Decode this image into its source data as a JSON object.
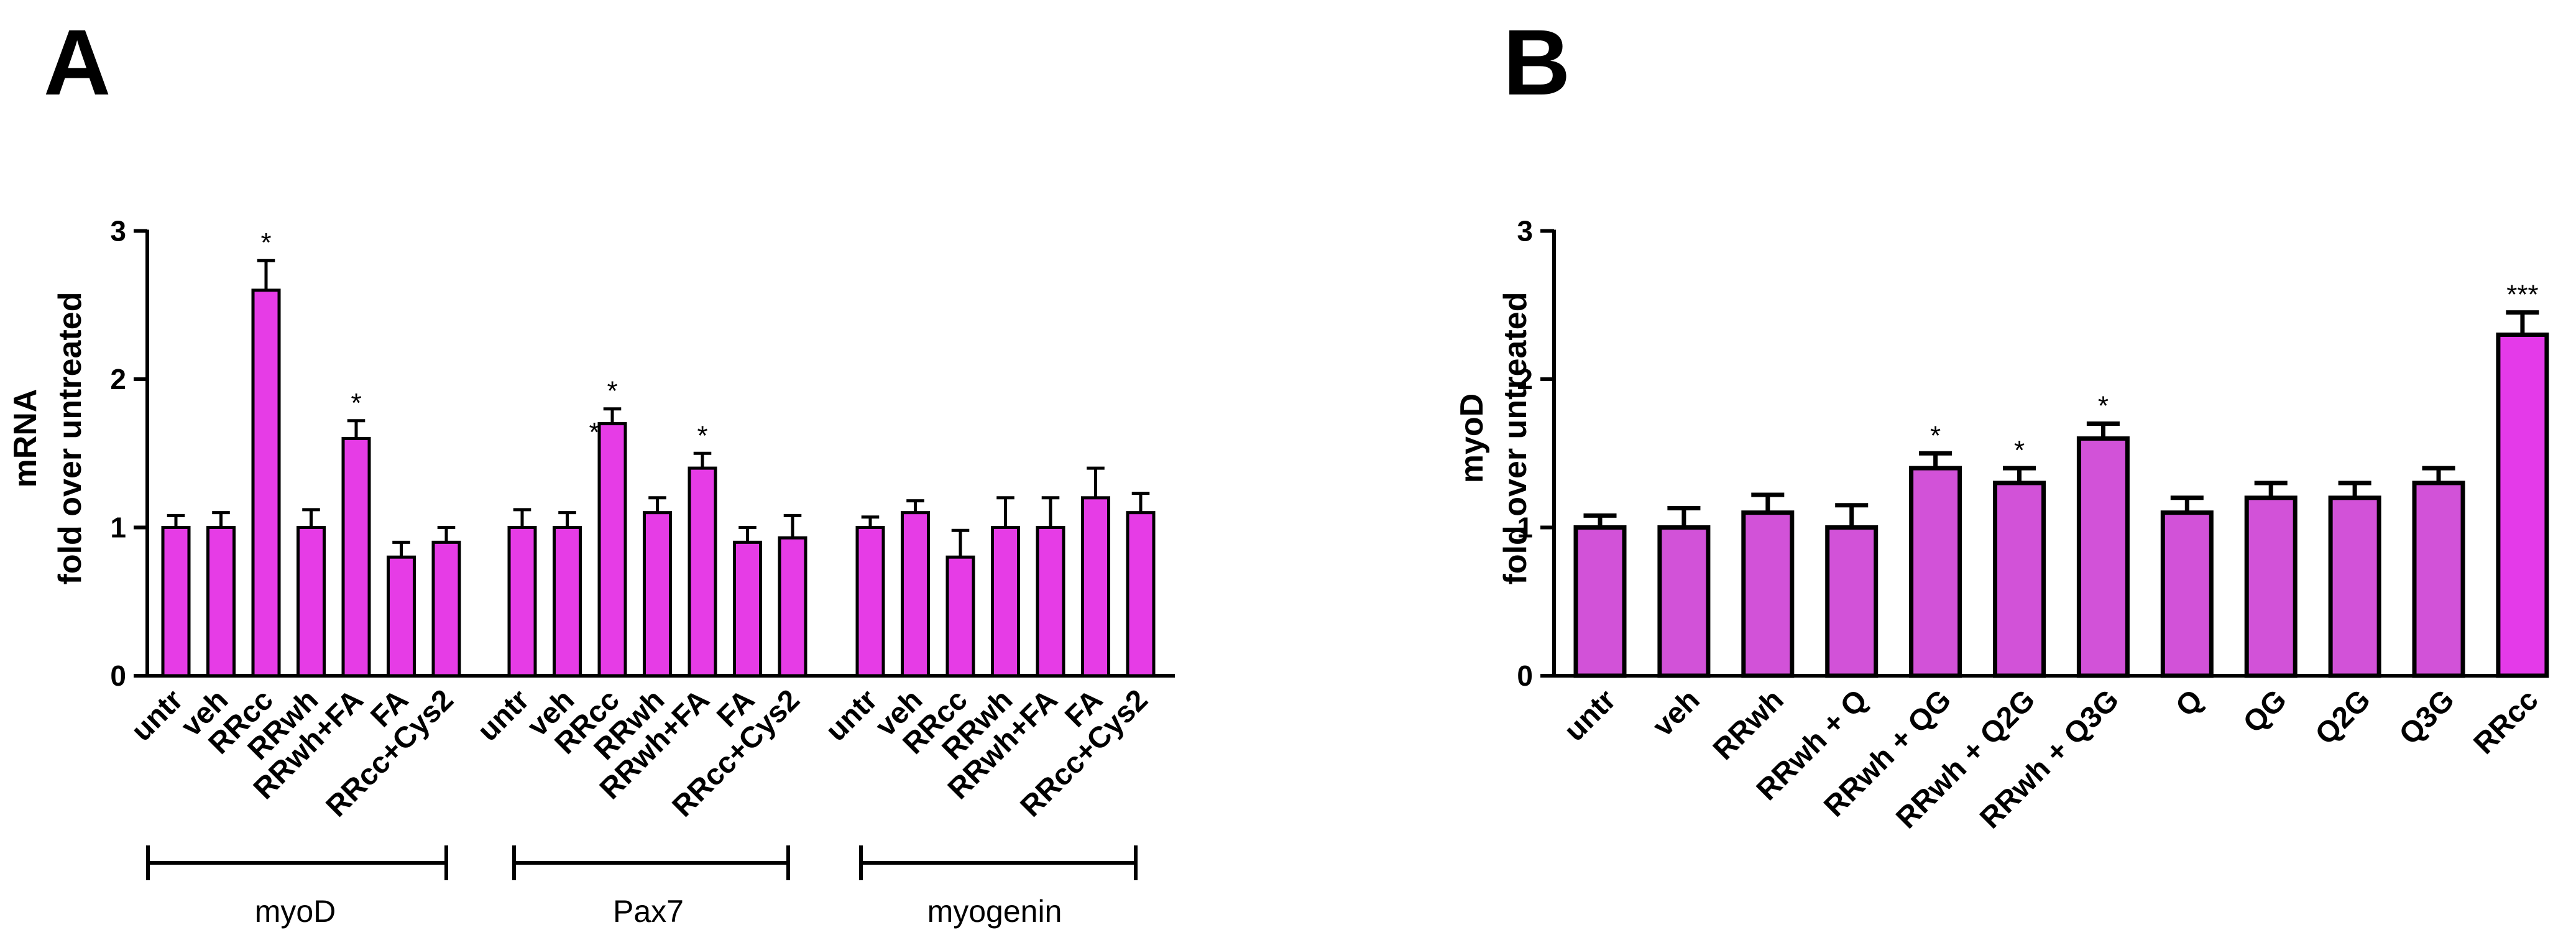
{
  "colors": {
    "barA": "#e63ce6",
    "barB": "#d252d8",
    "barHighlight": "#e43ae9",
    "axis": "#000000"
  },
  "chart_data": [
    {
      "panel": "A",
      "type": "bar",
      "ylabel_line1": "mRNA",
      "ylabel_line2": "fold over untreated",
      "ylim": [
        0,
        3
      ],
      "yticks": [
        "0",
        "1",
        "2",
        "3"
      ],
      "groups": [
        {
          "name": "myoD",
          "categories": [
            "untr",
            "veh",
            "RRcc",
            "RRwh",
            "RRwh+FA",
            "FA",
            "RRcc+Cys2"
          ],
          "values": [
            1.0,
            1.0,
            2.6,
            1.0,
            1.6,
            0.8,
            0.9
          ],
          "errors": [
            0.08,
            0.1,
            0.2,
            0.12,
            0.12,
            0.1,
            0.1
          ],
          "significance": [
            "",
            "",
            "*",
            "",
            "*",
            "",
            ""
          ]
        },
        {
          "name": "Pax7",
          "categories": [
            "untr",
            "veh",
            "RRcc",
            "RRwh",
            "RRwh+FA",
            "FA",
            "RRcc+Cys2"
          ],
          "values": [
            1.0,
            1.0,
            1.7,
            1.1,
            1.4,
            0.9,
            0.93
          ],
          "errors": [
            0.12,
            0.1,
            0.1,
            0.1,
            0.1,
            0.1,
            0.15
          ],
          "significance": [
            "",
            "",
            "*",
            "",
            "*",
            "",
            ""
          ]
        },
        {
          "name": "myogenin",
          "categories": [
            "untr",
            "veh",
            "RRcc",
            "RRwh",
            "RRwh+FA",
            "FA",
            "RRcc+Cys2"
          ],
          "values": [
            1.0,
            1.1,
            0.8,
            1.0,
            1.0,
            1.2,
            1.1
          ],
          "errors": [
            0.07,
            0.08,
            0.18,
            0.2,
            0.2,
            0.2,
            0.13
          ],
          "significance": [
            "",
            "",
            "",
            "",
            "",
            "",
            ""
          ]
        }
      ],
      "extra_marks": [
        "*"
      ]
    },
    {
      "panel": "B",
      "type": "bar",
      "ylabel_line1": "myoD",
      "ylabel_line2": "fold over untreated",
      "ylim": [
        0,
        3
      ],
      "yticks": [
        "0",
        "1",
        "2",
        "3"
      ],
      "categories": [
        "untr",
        "veh",
        "RRwh",
        "RRwh + Q",
        "RRwh + QG",
        "RRwh + Q2G",
        "RRwh + Q3G",
        "Q",
        "QG",
        "Q2G",
        "Q3G",
        "RRcc"
      ],
      "values": [
        1.0,
        1.0,
        1.1,
        1.0,
        1.4,
        1.3,
        1.6,
        1.1,
        1.2,
        1.2,
        1.3,
        2.3
      ],
      "errors": [
        0.08,
        0.13,
        0.12,
        0.15,
        0.1,
        0.1,
        0.1,
        0.1,
        0.1,
        0.1,
        0.1,
        0.15
      ],
      "significance": [
        "",
        "",
        "",
        "",
        "*",
        "*",
        "*",
        "",
        "",
        "",
        "",
        "***"
      ]
    }
  ]
}
